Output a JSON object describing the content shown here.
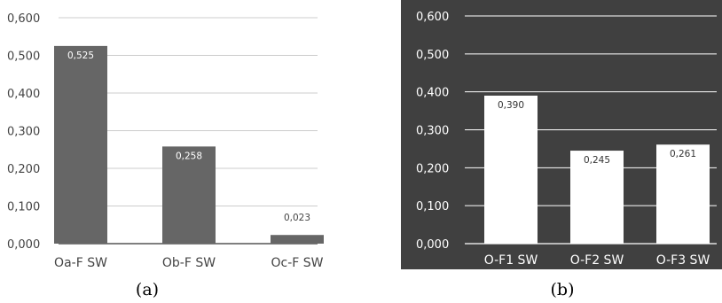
{
  "chart_data": [
    {
      "type": "bar",
      "caption": "(a)",
      "categories": [
        "Oa-F SW",
        "Ob-F SW",
        "Oc-F SW"
      ],
      "values": [
        0.525,
        0.258,
        0.023
      ],
      "value_labels": [
        "0,525",
        "0,258",
        "0,023"
      ],
      "ylim": [
        0,
        0.6
      ],
      "yticks": [
        "0,000",
        "0,100",
        "0,200",
        "0,300",
        "0,400",
        "0,500",
        "0,600"
      ],
      "grid": true,
      "background": "#ffffff",
      "bar_color": "#666666"
    },
    {
      "type": "bar",
      "caption": "(b)",
      "categories": [
        "O-F1 SW",
        "O-F2 SW",
        "O-F3 SW"
      ],
      "values": [
        0.39,
        0.245,
        0.261
      ],
      "value_labels": [
        "0,390",
        "0,245",
        "0,261"
      ],
      "ylim": [
        0,
        0.6
      ],
      "yticks": [
        "0,000",
        "0,100",
        "0,200",
        "0,300",
        "0,400",
        "0,500",
        "0,600"
      ],
      "grid": true,
      "background": "#404040",
      "bar_color": "#ffffff"
    }
  ]
}
